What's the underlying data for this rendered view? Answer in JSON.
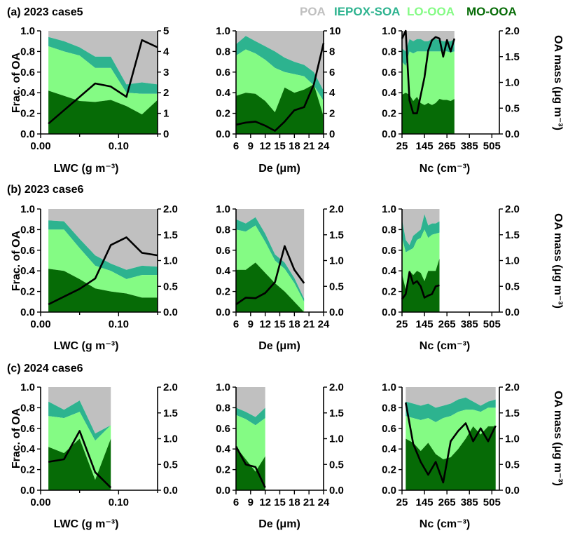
{
  "legend": {
    "entries": [
      {
        "label": "POA",
        "color": "#c0c0c0"
      },
      {
        "label": "IEPOX-SOA",
        "color": "#2db38f"
      },
      {
        "label": "LO-OOA",
        "color": "#84fb84"
      },
      {
        "label": "MO-OOA",
        "color": "#066b06"
      }
    ]
  },
  "labels": {
    "frac_axis": "Frac. of OA",
    "mass_axis": "OA mass (μg m⁻³)",
    "lwc_axis": "LWC (g m⁻³)",
    "de_axis": "De (μm)",
    "nc_axis": "Nc (cm⁻³)"
  },
  "rows": [
    {
      "title": "(a) 2023 case5"
    },
    {
      "title": "(b) 2023 case6"
    },
    {
      "title": "(c) 2024 case6"
    }
  ],
  "chart_data": [
    {
      "type": "area",
      "panel": "a-lwc",
      "row": 0,
      "col": 0,
      "xlabel": "LWC (g m⁻³)",
      "xlim": [
        0,
        0.15
      ],
      "xticks": [
        0,
        0.1
      ],
      "xticklabels": [
        "0.00",
        "0.10"
      ],
      "minor_xticks": [
        0.05,
        0.15
      ],
      "ylim": [
        0,
        1
      ],
      "y2lim": [
        0,
        5
      ],
      "y2ticks": [
        0,
        1,
        2,
        3,
        4,
        5
      ],
      "y2ticklabels": [
        "0",
        "1",
        "2",
        "3",
        "4",
        "5"
      ],
      "x": [
        0.01,
        0.03,
        0.05,
        0.07,
        0.09,
        0.11,
        0.13,
        0.15
      ],
      "mo_ooa": [
        0.42,
        0.37,
        0.32,
        0.31,
        0.33,
        0.27,
        0.19,
        0.33
      ],
      "lo_ooa_top": [
        0.85,
        0.8,
        0.76,
        0.64,
        0.64,
        0.4,
        0.39,
        0.39
      ],
      "iepox_top": [
        0.94,
        0.9,
        0.84,
        0.75,
        0.75,
        0.48,
        0.5,
        0.48
      ],
      "poa_top": [
        1.0,
        1.0,
        1.0,
        1.0,
        1.0,
        1.0,
        1.0,
        1.0
      ],
      "oa_mass": [
        0.5,
        1.15,
        1.8,
        2.45,
        2.3,
        1.8,
        4.55,
        4.2
      ]
    },
    {
      "type": "area",
      "panel": "a-de",
      "row": 0,
      "col": 1,
      "xlabel": "De (μm)",
      "xlim": [
        6,
        24
      ],
      "xticks": [
        6,
        9,
        12,
        15,
        18,
        21,
        24
      ],
      "xticklabels": [
        "6",
        "9",
        "12",
        "15",
        "18",
        "21",
        "24"
      ],
      "ylim": [
        0,
        1
      ],
      "y2lim": [
        0,
        10
      ],
      "y2ticks": [
        0,
        2,
        4,
        6,
        8,
        10
      ],
      "y2ticklabels": [
        "0",
        "2",
        "4",
        "6",
        "8",
        "10"
      ],
      "x": [
        6,
        8,
        10,
        12,
        14,
        16,
        18,
        20,
        22,
        24
      ],
      "mo_ooa": [
        0.37,
        0.4,
        0.39,
        0.32,
        0.21,
        0.45,
        0.4,
        0.43,
        0.48,
        0.17
      ],
      "lo_ooa_top": [
        0.76,
        0.82,
        0.78,
        0.72,
        0.64,
        0.6,
        0.58,
        0.56,
        0.47,
        0.32
      ],
      "iepox_top": [
        0.87,
        0.95,
        0.9,
        0.85,
        0.8,
        0.74,
        0.7,
        0.67,
        0.6,
        0.42
      ],
      "poa_top": [
        1.0,
        1.0,
        1.0,
        1.0,
        1.0,
        1.0,
        1.0,
        1.0,
        1.0,
        1.0
      ],
      "oa_mass": [
        0.9,
        1.1,
        1.2,
        0.8,
        0.3,
        1.2,
        2.3,
        2.6,
        4.8,
        8.8
      ]
    },
    {
      "type": "area",
      "panel": "a-nc",
      "row": 0,
      "col": 2,
      "xlabel": "Nc (cm⁻³)",
      "xlim": [
        25,
        545
      ],
      "xticks": [
        25,
        145,
        265,
        385,
        505
      ],
      "xticklabels": [
        "25",
        "145",
        "265",
        "385",
        "505"
      ],
      "ylim": [
        0,
        1
      ],
      "y2lim": [
        0,
        2
      ],
      "y2ticks": [
        0,
        0.5,
        1,
        1.5,
        2
      ],
      "y2ticklabels": [
        "0.0",
        "0.5",
        "1.0",
        "1.5",
        "2.0"
      ],
      "x": [
        25,
        45,
        65,
        85,
        105,
        125,
        145,
        165,
        185,
        205,
        225,
        245,
        265,
        285,
        305
      ],
      "mo_ooa": [
        0.38,
        0.4,
        0.38,
        0.32,
        0.36,
        0.3,
        0.28,
        0.3,
        0.28,
        0.3,
        0.34,
        0.33,
        0.33,
        0.32,
        0.34
      ],
      "lo_ooa_top": [
        0.7,
        0.66,
        0.8,
        0.78,
        0.8,
        0.8,
        0.8,
        0.8,
        0.8,
        0.8,
        0.8,
        0.8,
        0.8,
        0.79,
        0.8
      ],
      "iepox_top": [
        0.83,
        0.8,
        0.92,
        0.9,
        0.92,
        0.92,
        0.9,
        0.9,
        0.92,
        0.92,
        0.91,
        0.9,
        0.9,
        0.9,
        0.92
      ],
      "poa_top": [
        1.0,
        1.0,
        1.0,
        1.0,
        1.0,
        1.0,
        1.0,
        1.0,
        1.0,
        1.0,
        1.0,
        1.0,
        1.0,
        1.0,
        1.0
      ],
      "oa_mass": [
        1.85,
        2.0,
        0.65,
        0.4,
        0.4,
        0.75,
        1.1,
        1.62,
        1.82,
        1.88,
        1.85,
        1.5,
        1.82,
        1.6,
        1.85
      ]
    },
    {
      "type": "area",
      "panel": "b-lwc",
      "row": 1,
      "col": 0,
      "xlabel": "LWC (g m⁻³)",
      "xlim": [
        0,
        0.15
      ],
      "xticks": [
        0,
        0.1
      ],
      "xticklabels": [
        "0.00",
        "0.10"
      ],
      "minor_xticks": [
        0.05,
        0.15
      ],
      "ylim": [
        0,
        1
      ],
      "y2lim": [
        0,
        2
      ],
      "y2ticks": [
        0,
        0.5,
        1,
        1.5,
        2
      ],
      "y2ticklabels": [
        "0.0",
        "0.5",
        "1.0",
        "1.5",
        "2.0"
      ],
      "x": [
        0.01,
        0.03,
        0.05,
        0.07,
        0.09,
        0.11,
        0.13,
        0.15
      ],
      "mo_ooa": [
        0.42,
        0.4,
        0.32,
        0.23,
        0.2,
        0.18,
        0.14,
        0.14
      ],
      "lo_ooa_top": [
        0.8,
        0.8,
        0.62,
        0.45,
        0.4,
        0.32,
        0.36,
        0.36
      ],
      "iepox_top": [
        0.89,
        0.88,
        0.71,
        0.55,
        0.47,
        0.41,
        0.45,
        0.44
      ],
      "poa_top": [
        1.0,
        1.0,
        1.0,
        1.0,
        1.0,
        1.0,
        1.0,
        1.0
      ],
      "oa_mass": [
        0.15,
        0.3,
        0.45,
        0.65,
        1.3,
        1.45,
        1.15,
        1.1
      ]
    },
    {
      "type": "area",
      "panel": "b-de",
      "row": 1,
      "col": 1,
      "xlabel": "De (μm)",
      "xlim": [
        6,
        24
      ],
      "xticks": [
        6,
        9,
        12,
        15,
        18,
        21,
        24
      ],
      "xticklabels": [
        "6",
        "9",
        "12",
        "15",
        "18",
        "21",
        "24"
      ],
      "ylim": [
        0,
        1
      ],
      "y2lim": [
        0,
        2
      ],
      "y2ticks": [
        0,
        0.5,
        1,
        1.5,
        2
      ],
      "y2ticklabels": [
        "0.0",
        "0.5",
        "1.0",
        "1.5",
        "2.0"
      ],
      "x": [
        6,
        8,
        10,
        12,
        14,
        16,
        18,
        20
      ],
      "mo_ooa": [
        0.41,
        0.41,
        0.48,
        0.38,
        0.28,
        0.2,
        0.1,
        0.0
      ],
      "lo_ooa_top": [
        0.8,
        0.78,
        0.84,
        0.68,
        0.5,
        0.42,
        0.28,
        0.1
      ],
      "iepox_top": [
        0.9,
        0.86,
        0.92,
        0.76,
        0.56,
        0.48,
        0.33,
        0.13
      ],
      "poa_top": [
        1.0,
        1.0,
        1.0,
        1.0,
        1.0,
        1.0,
        1.0,
        1.0
      ],
      "oa_mass": [
        0.15,
        0.28,
        0.27,
        0.37,
        0.58,
        1.28,
        0.82,
        0.56
      ]
    },
    {
      "type": "area",
      "panel": "b-nc",
      "row": 1,
      "col": 2,
      "xlabel": "Nc (cm⁻³)",
      "xlim": [
        25,
        545
      ],
      "xticks": [
        25,
        145,
        265,
        385,
        505
      ],
      "xticklabels": [
        "25",
        "145",
        "265",
        "385",
        "505"
      ],
      "ylim": [
        0,
        1
      ],
      "y2lim": [
        0,
        2
      ],
      "y2ticks": [
        0,
        0.5,
        1,
        1.5,
        2
      ],
      "y2ticklabels": [
        "0.0",
        "0.5",
        "1.0",
        "1.5",
        "2.0"
      ],
      "x": [
        25,
        45,
        65,
        85,
        105,
        125,
        145,
        165,
        185,
        205,
        225
      ],
      "mo_ooa": [
        0.37,
        0.22,
        0.4,
        0.36,
        0.4,
        0.38,
        0.3,
        0.4,
        0.4,
        0.4,
        0.52
      ],
      "lo_ooa_top": [
        0.72,
        0.58,
        0.6,
        0.62,
        0.7,
        0.72,
        0.8,
        0.72,
        0.75,
        0.76,
        0.77
      ],
      "iepox_top": [
        0.9,
        0.7,
        0.65,
        0.74,
        0.77,
        0.8,
        0.95,
        0.84,
        0.86,
        0.86,
        0.88
      ],
      "poa_top": [
        1.0,
        1.0,
        1.0,
        1.0,
        1.0,
        1.0,
        1.0,
        1.0,
        1.0,
        1.0,
        1.0
      ],
      "oa_mass": [
        0.25,
        0.35,
        0.78,
        0.55,
        0.6,
        0.5,
        0.28,
        0.32,
        0.35,
        0.5,
        0.52
      ]
    },
    {
      "type": "area",
      "panel": "c-lwc",
      "row": 2,
      "col": 0,
      "xlabel": "LWC (g m⁻³)",
      "xlim": [
        0,
        0.15
      ],
      "xticks": [
        0,
        0.1
      ],
      "xticklabels": [
        "0.00",
        "0.10"
      ],
      "minor_xticks": [
        0.05,
        0.15
      ],
      "ylim": [
        0,
        1
      ],
      "y2lim": [
        0,
        2
      ],
      "y2ticks": [
        0,
        0.5,
        1,
        1.5,
        2
      ],
      "y2ticklabels": [
        "0.0",
        "0.5",
        "1.0",
        "1.5",
        "2.0"
      ],
      "x": [
        0.01,
        0.03,
        0.05,
        0.07,
        0.09
      ],
      "mo_ooa": [
        0.42,
        0.36,
        0.5,
        0.1,
        0.5
      ],
      "lo_ooa_top": [
        0.72,
        0.7,
        0.76,
        0.48,
        0.63
      ],
      "iepox_top": [
        0.86,
        0.78,
        0.87,
        0.55,
        0.63
      ],
      "poa_top": [
        1.0,
        1.0,
        1.0,
        1.0,
        1.0
      ],
      "oa_mass": [
        0.55,
        0.6,
        1.15,
        0.35,
        0.05
      ]
    },
    {
      "type": "area",
      "panel": "c-de",
      "row": 2,
      "col": 1,
      "xlabel": "De (μm)",
      "xlim": [
        6,
        24
      ],
      "xticks": [
        6,
        9,
        12,
        15,
        18,
        21,
        24
      ],
      "xticklabels": [
        "6",
        "9",
        "12",
        "15",
        "18",
        "21",
        "24"
      ],
      "ylim": [
        0,
        1
      ],
      "y2lim": [
        0,
        2
      ],
      "y2ticks": [
        0,
        0.5,
        1,
        1.5,
        2
      ],
      "y2ticklabels": [
        "0.0",
        "0.5",
        "1.0",
        "1.5",
        "2.0"
      ],
      "x": [
        6,
        8,
        10,
        12
      ],
      "mo_ooa": [
        0.42,
        0.3,
        0.18,
        0.33
      ],
      "lo_ooa_top": [
        0.73,
        0.69,
        0.63,
        0.7
      ],
      "iepox_top": [
        0.8,
        0.76,
        0.71,
        0.8
      ],
      "poa_top": [
        1.0,
        1.0,
        1.0,
        1.0
      ],
      "oa_mass": [
        0.85,
        0.5,
        0.45,
        0.05
      ]
    },
    {
      "type": "area",
      "panel": "c-nc",
      "row": 2,
      "col": 2,
      "xlabel": "Nc (cm⁻³)",
      "xlim": [
        25,
        545
      ],
      "xticks": [
        25,
        145,
        265,
        385,
        505
      ],
      "xticklabels": [
        "25",
        "145",
        "265",
        "385",
        "505"
      ],
      "ylim": [
        0,
        1
      ],
      "y2lim": [
        0,
        2
      ],
      "y2ticks": [
        0,
        0.5,
        1,
        1.5,
        2
      ],
      "y2ticklabels": [
        "0.0",
        "0.5",
        "1.0",
        "1.5",
        "2.0"
      ],
      "x": [
        45,
        85,
        125,
        165,
        205,
        245,
        285,
        325,
        365,
        405,
        445,
        485,
        525
      ],
      "mo_ooa": [
        0.5,
        0.46,
        0.38,
        0.46,
        0.35,
        0.3,
        0.32,
        0.4,
        0.5,
        0.62,
        0.54,
        0.62,
        0.62
      ],
      "lo_ooa_top": [
        0.72,
        0.7,
        0.68,
        0.7,
        0.66,
        0.7,
        0.72,
        0.76,
        0.78,
        0.78,
        0.76,
        0.8,
        0.8
      ],
      "iepox_top": [
        0.86,
        0.84,
        0.82,
        0.84,
        0.8,
        0.82,
        0.84,
        0.88,
        0.9,
        0.86,
        0.82,
        0.86,
        0.88
      ],
      "poa_top": [
        1.0,
        1.0,
        1.0,
        1.0,
        1.0,
        1.0,
        1.0,
        1.0,
        1.0,
        1.0,
        1.0,
        1.0,
        1.0
      ],
      "oa_mass": [
        1.7,
        0.9,
        0.55,
        0.3,
        0.55,
        0.15,
        0.95,
        1.15,
        1.3,
        0.95,
        1.2,
        0.95,
        1.25
      ]
    }
  ]
}
